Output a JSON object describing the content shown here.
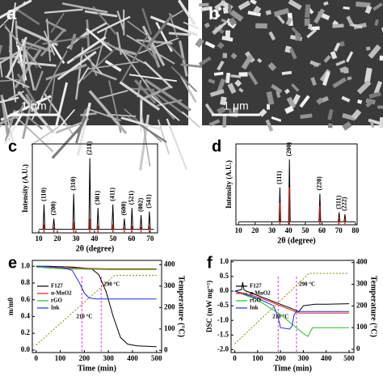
{
  "panels": [
    {
      "label": "a",
      "scale_bar": "1 μm"
    },
    {
      "label": "b",
      "scale_bar": "1 μm"
    }
  ],
  "chart_data": [
    {
      "type": "line",
      "panel_label": "c",
      "xlabel": "2θ (degree)",
      "ylabel": "Intensity (A.U.)",
      "xlim": [
        6.5,
        74
      ],
      "xticks": [
        10,
        20,
        30,
        40,
        50,
        60,
        70
      ],
      "ylim": [
        0,
        1.25
      ],
      "series": [
        {
          "color": "#000000",
          "x": [
            10,
            12.3,
            12.8,
            13.3,
            17.6,
            18.1,
            18.6,
            28.3,
            28.8,
            29.3,
            37,
            37.5,
            38,
            41.4,
            41.9,
            42.4,
            49.4,
            49.9,
            50.4,
            55.6,
            56.1,
            56.6,
            59.7,
            60.2,
            60.7,
            64.6,
            65.1,
            65.6,
            69.1,
            69.6,
            70.1,
            72
          ],
          "values": [
            0.05,
            0.05,
            0.4,
            0.05,
            0.05,
            0.2,
            0.05,
            0.05,
            0.55,
            0.05,
            0.05,
            1.05,
            0.05,
            0.05,
            0.35,
            0.05,
            0.05,
            0.4,
            0.05,
            0.05,
            0.2,
            0.05,
            0.05,
            0.35,
            0.05,
            0.05,
            0.25,
            0.05,
            0.05,
            0.3,
            0.05,
            0.05
          ]
        },
        {
          "color": "#e02020",
          "stick": true,
          "x": [
            12.8,
            18.1,
            28.8,
            37.5,
            41.9,
            49.9,
            56.1,
            60.2,
            65.1,
            69.6
          ],
          "values": [
            0.12,
            0.08,
            0.15,
            0.2,
            0.1,
            0.12,
            0.07,
            0.1,
            0.08,
            0.09
          ]
        }
      ],
      "annotations": [
        {
          "text": "(110)",
          "x": 12.8
        },
        {
          "text": "(200)",
          "x": 18.1
        },
        {
          "text": "(310)",
          "x": 28.8
        },
        {
          "text": "(211)",
          "x": 37.5
        },
        {
          "text": "(301)",
          "x": 41.9
        },
        {
          "text": "(411)",
          "x": 49.9
        },
        {
          "text": "(600)",
          "x": 56.1
        },
        {
          "text": "(521)",
          "x": 60.2
        },
        {
          "text": "(002)",
          "x": 65.1
        },
        {
          "text": "(541)",
          "x": 69.6
        }
      ]
    },
    {
      "type": "line",
      "panel_label": "d",
      "xlabel": "2θ (degree)",
      "ylabel": "Intensity (A.U.)",
      "xlim": [
        8.5,
        81
      ],
      "xticks": [
        10,
        20,
        30,
        40,
        50,
        60,
        70,
        80
      ],
      "ylim": [
        0,
        1.3
      ],
      "series": [
        {
          "color": "#000000",
          "x": [
            10,
            34.3,
            34.8,
            35.3,
            40,
            40.5,
            41,
            58.2,
            58.7,
            59.2,
            69.7,
            70.2,
            70.7,
            73.2,
            73.7,
            74.2,
            80
          ],
          "values": [
            0.05,
            0.05,
            0.6,
            0.05,
            0.05,
            1.05,
            0.05,
            0.05,
            0.5,
            0.05,
            0.05,
            0.2,
            0.05,
            0.05,
            0.17,
            0.05,
            0.05
          ]
        },
        {
          "color": "#e02020",
          "stick": true,
          "x": [
            34.8,
            40.5,
            58.7,
            70.2,
            73.7
          ],
          "values": [
            0.35,
            0.6,
            0.3,
            0.12,
            0.1
          ]
        }
      ],
      "annotations": [
        {
          "text": "(111)",
          "x": 34.8
        },
        {
          "text": "(200)",
          "x": 40.5
        },
        {
          "text": "(220)",
          "x": 58.7
        },
        {
          "text": "(311)",
          "x": 70.2
        },
        {
          "text": "(222)",
          "x": 73.7
        }
      ]
    },
    {
      "type": "line",
      "panel_label": "e",
      "xlabel": "Time (min)",
      "ylabel": "m/m0",
      "y2label": "Temperature (°C)",
      "xlim": [
        -16,
        521
      ],
      "xticks": [
        0,
        100,
        200,
        300,
        400,
        500
      ],
      "ylim": [
        -0.03,
        1.07
      ],
      "yticks": [
        {
          "value": 0,
          "label": "0.0"
        },
        0.2,
        0.4,
        0.6,
        0.8,
        {
          "value": 1,
          "label": "1.0"
        }
      ],
      "y2lim": [
        -10,
        420
      ],
      "y2ticks": [
        0,
        100,
        200,
        300,
        400
      ],
      "legend": "center-left",
      "series": [
        {
          "name": "F127",
          "color": "#000000",
          "x": [
            0,
            50,
            150,
            230,
            260,
            290,
            320,
            350,
            380,
            420,
            500
          ],
          "values": [
            1.0,
            1.0,
            0.99,
            0.97,
            0.9,
            0.7,
            0.4,
            0.15,
            0.07,
            0.05,
            0.04
          ]
        },
        {
          "name": "α-MnO2",
          "color": "#e02020",
          "x": [
            0,
            100,
            300,
            500
          ],
          "values": [
            1.0,
            0.98,
            0.97,
            0.97
          ]
        },
        {
          "name": "rGO",
          "color": "#20c020",
          "x": [
            0,
            100,
            300,
            500
          ],
          "values": [
            0.99,
            0.97,
            0.96,
            0.96
          ]
        },
        {
          "name": "Ink",
          "color": "#2030e0",
          "x": [
            0,
            100,
            150,
            180,
            200,
            220,
            250,
            300,
            500
          ],
          "values": [
            1.0,
            0.99,
            0.95,
            0.8,
            0.68,
            0.62,
            0.61,
            0.61,
            0.61
          ]
        },
        {
          "color": "#8a8a00",
          "axis": "y2",
          "line_style": "dotted",
          "x": [
            0,
            325,
            500
          ],
          "values": [
            25,
            350,
            350
          ]
        }
      ],
      "markers": [
        {
          "x": 190,
          "label": "210 °C"
        },
        {
          "x": 270,
          "label": "290 °C"
        }
      ]
    },
    {
      "type": "line",
      "panel_label": "f",
      "xlabel": "Time (min)",
      "ylabel": "DSC (mW mg⁻¹)",
      "y2label": "Temperature (°C)",
      "xlim": [
        -16,
        521
      ],
      "xticks": [
        0,
        100,
        200,
        300,
        400,
        500
      ],
      "ylim": [
        -2.1,
        1.05
      ],
      "yticks": [
        {
          "value": -2,
          "label": "-2.0"
        },
        -1.5,
        {
          "value": -1,
          "label": "-1.0"
        },
        -0.5,
        {
          "value": 0,
          "label": "0.0"
        },
        0.5,
        {
          "value": 1,
          "label": "1.0"
        }
      ],
      "y2lim": [
        -15,
        410
      ],
      "y2ticks": [
        0,
        100,
        200,
        300,
        400
      ],
      "legend": "center-left",
      "series": [
        {
          "name": "F127",
          "color": "#000000",
          "x": [
            0,
            30,
            35,
            40,
            50,
            100,
            150,
            200,
            250,
            280,
            290,
            300,
            350,
            400,
            500
          ],
          "values": [
            0,
            0.05,
            0.3,
            0.05,
            0,
            -0.15,
            -0.3,
            -0.45,
            -0.6,
            -0.7,
            -0.6,
            -0.5,
            -0.45,
            -0.45,
            -0.43
          ]
        },
        {
          "name": "α-MnO2",
          "color": "#e02020",
          "x": [
            0,
            100,
            200,
            280,
            300,
            500
          ],
          "values": [
            0,
            -0.2,
            -0.5,
            -0.75,
            -0.75,
            -0.75
          ]
        },
        {
          "name": "rGO",
          "color": "#20c020",
          "x": [
            0,
            100,
            200,
            300,
            320,
            340,
            500
          ],
          "values": [
            0,
            -0.3,
            -0.8,
            -1.45,
            -1.55,
            -1.25,
            -1.25
          ]
        },
        {
          "name": "Ink",
          "color": "#2030e0",
          "x": [
            0,
            100,
            170,
            190,
            200,
            240,
            250,
            260,
            270,
            300,
            500
          ],
          "values": [
            0,
            -0.25,
            -0.5,
            -0.9,
            -1.25,
            -1.3,
            -1.2,
            -0.8,
            -0.7,
            -0.7,
            -0.7
          ]
        },
        {
          "color": "#8a8a00",
          "axis": "y2",
          "line_style": "dotted",
          "x": [
            0,
            325,
            500
          ],
          "values": [
            25,
            350,
            350
          ]
        }
      ],
      "markers": [
        {
          "x": 190,
          "label": "210 °C"
        },
        {
          "x": 270,
          "label": "290 °C"
        }
      ]
    }
  ]
}
